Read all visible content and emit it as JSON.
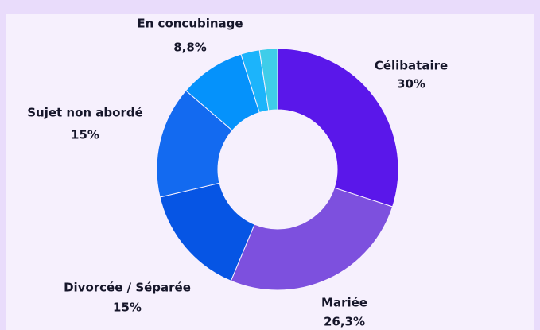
{
  "chart_data": {
    "type": "donut",
    "categories": [
      "Célibataire",
      "Mariée",
      "Divorcée / Séparée",
      "Sujet non abordé",
      "En concubinage",
      null,
      null
    ],
    "values": [
      30,
      26.3,
      15,
      15,
      8.8,
      2.5,
      2.4
    ],
    "value_labels": [
      "30%",
      "26,3%",
      "15%",
      "15%",
      "8,8%",
      null,
      null
    ],
    "colors": [
      "#5a17ea",
      "#7d50de",
      "#0655e4",
      "#136af0",
      "#0592fb",
      "#1cb4fb",
      "#3fcde9"
    ]
  }
}
